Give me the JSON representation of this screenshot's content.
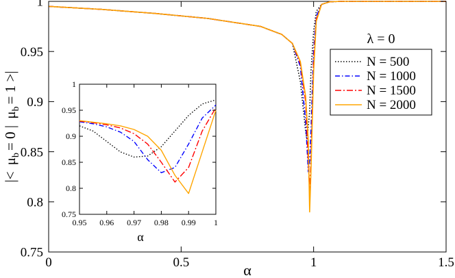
{
  "chart_data": [
    {
      "id": "main",
      "type": "line",
      "title": "",
      "xlabel": "α",
      "ylabel": "|< μ_b = 0 | μ_b = 1 >|",
      "ylabel_parts": {
        "open": "|<",
        "mu1": "μ",
        "sub1": "b",
        "eq1": "= 0 |",
        "mu2": "μ",
        "sub2": "b",
        "eq2": "= 1 >|"
      },
      "xlim": [
        0,
        1.5
      ],
      "ylim": [
        0.75,
        1.0
      ],
      "xticks": [
        0,
        0.5,
        1,
        1.5
      ],
      "xtick_labels": [
        "0",
        "0.5",
        "1",
        "1.5"
      ],
      "yticks": [
        0.75,
        0.8,
        0.85,
        0.9,
        0.95,
        1
      ],
      "ytick_labels": [
        "0.75",
        "0.8",
        "0.85",
        "0.9",
        "0.95",
        "1"
      ],
      "legend": {
        "title": "λ = 0",
        "placement": "right",
        "entries": [
          "N = 500",
          "N = 1000",
          "N = 1500",
          "N = 2000"
        ]
      },
      "series": [
        {
          "name": "N = 500",
          "color": "#000000",
          "dash": "dotted",
          "x": [
            0,
            0.2,
            0.4,
            0.6,
            0.8,
            0.88,
            0.92,
            0.95,
            0.97,
            0.975,
            0.985,
            0.99,
            1.0,
            1.01,
            1.03,
            1.06,
            1.1,
            1.2,
            1.5
          ],
          "y": [
            0.995,
            0.992,
            0.988,
            0.983,
            0.975,
            0.967,
            0.958,
            0.92,
            0.87,
            0.862,
            0.89,
            0.93,
            0.97,
            0.99,
            0.997,
            0.9995,
            1.0,
            1.0,
            1.0
          ]
        },
        {
          "name": "N = 1000",
          "color": "#0000ff",
          "dash": "dashdot",
          "x": [
            0,
            0.2,
            0.4,
            0.6,
            0.8,
            0.88,
            0.92,
            0.95,
            0.97,
            0.98,
            0.985,
            0.99,
            1.0,
            1.01,
            1.03,
            1.06,
            1.1,
            1.2,
            1.5
          ],
          "y": [
            0.995,
            0.992,
            0.988,
            0.983,
            0.975,
            0.967,
            0.958,
            0.935,
            0.88,
            0.83,
            0.84,
            0.87,
            0.95,
            0.985,
            0.997,
            0.9995,
            1.0,
            1.0,
            1.0
          ]
        },
        {
          "name": "N = 1500",
          "color": "#ff0000",
          "dash": "dashdotlong",
          "x": [
            0,
            0.2,
            0.4,
            0.6,
            0.8,
            0.88,
            0.92,
            0.95,
            0.97,
            0.98,
            0.985,
            0.99,
            1.0,
            1.01,
            1.03,
            1.06,
            1.1,
            1.2,
            1.5
          ],
          "y": [
            0.995,
            0.992,
            0.988,
            0.983,
            0.975,
            0.967,
            0.958,
            0.938,
            0.9,
            0.84,
            0.81,
            0.84,
            0.94,
            0.982,
            0.997,
            0.9995,
            1.0,
            1.0,
            1.0
          ]
        },
        {
          "name": "N = 2000",
          "color": "#ffa500",
          "dash": "solid",
          "x": [
            0,
            0.2,
            0.4,
            0.6,
            0.8,
            0.88,
            0.92,
            0.95,
            0.97,
            0.98,
            0.985,
            0.99,
            1.0,
            1.01,
            1.03,
            1.06,
            1.1,
            1.2,
            1.5
          ],
          "y": [
            0.995,
            0.992,
            0.988,
            0.983,
            0.975,
            0.967,
            0.958,
            0.94,
            0.905,
            0.86,
            0.79,
            0.83,
            0.93,
            0.98,
            0.997,
            0.9995,
            1.0,
            1.0,
            1.0
          ]
        }
      ]
    },
    {
      "id": "inset",
      "type": "line",
      "title": "",
      "xlabel": "α",
      "ylabel": "",
      "xlim": [
        0.95,
        1.0
      ],
      "ylim": [
        0.75,
        1.0
      ],
      "xticks": [
        0.95,
        0.96,
        0.97,
        0.98,
        0.99,
        1
      ],
      "xtick_labels": [
        "0.95",
        "0.96",
        "0.97",
        "0.98",
        "0.99",
        "1"
      ],
      "yticks": [
        0.75,
        0.8,
        0.85,
        0.9,
        0.95,
        1
      ],
      "ytick_labels": [
        "0.75",
        "0.8",
        "0.85",
        "0.9",
        "0.95",
        "1"
      ],
      "series": [
        {
          "name": "N = 500",
          "color": "#000000",
          "dash": "dotted",
          "x": [
            0.95,
            0.955,
            0.96,
            0.965,
            0.97,
            0.975,
            0.98,
            0.985,
            0.99,
            0.995,
            1.0
          ],
          "y": [
            0.92,
            0.91,
            0.89,
            0.87,
            0.86,
            0.862,
            0.88,
            0.91,
            0.94,
            0.962,
            0.97
          ]
        },
        {
          "name": "N = 1000",
          "color": "#0000ff",
          "dash": "dashdot",
          "x": [
            0.95,
            0.955,
            0.96,
            0.965,
            0.97,
            0.975,
            0.98,
            0.985,
            0.99,
            0.995,
            1.0
          ],
          "y": [
            0.928,
            0.924,
            0.918,
            0.908,
            0.89,
            0.855,
            0.83,
            0.84,
            0.885,
            0.935,
            0.96
          ]
        },
        {
          "name": "N = 1500",
          "color": "#ff0000",
          "dash": "dashdotlong",
          "x": [
            0.95,
            0.955,
            0.96,
            0.965,
            0.97,
            0.975,
            0.98,
            0.985,
            0.99,
            0.995,
            1.0
          ],
          "y": [
            0.929,
            0.926,
            0.922,
            0.916,
            0.905,
            0.885,
            0.85,
            0.812,
            0.84,
            0.91,
            0.955
          ]
        },
        {
          "name": "N = 2000",
          "color": "#ffa500",
          "dash": "solid",
          "x": [
            0.95,
            0.955,
            0.96,
            0.965,
            0.97,
            0.975,
            0.98,
            0.985,
            0.99,
            0.995,
            1.0
          ],
          "y": [
            0.93,
            0.927,
            0.924,
            0.92,
            0.913,
            0.9,
            0.873,
            0.825,
            0.79,
            0.87,
            0.95
          ]
        }
      ]
    }
  ]
}
